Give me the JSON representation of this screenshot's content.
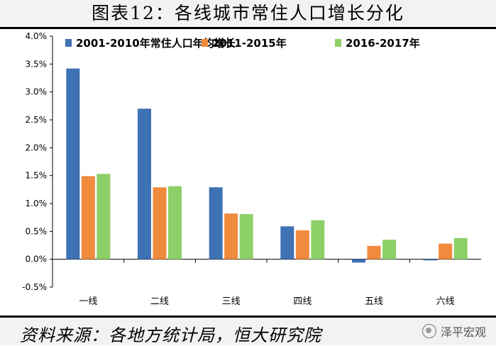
{
  "header": {
    "title": "图表12：各线城市常住人口增长分化"
  },
  "footer": {
    "source": "资料来源：各地方统计局，恒大研究院",
    "watermark": "泽平宏观"
  },
  "colors": {
    "series1": "#3f71b5",
    "series2": "#f08a3c",
    "series3": "#8ed068"
  },
  "chart_data": {
    "type": "bar",
    "title": "图表12：各线城市常住人口增长分化",
    "categories": [
      "一线",
      "二线",
      "三线",
      "四线",
      "五线",
      "六线"
    ],
    "series": [
      {
        "name": "2001-2010年常住人口年均增长",
        "values": [
          3.42,
          2.7,
          1.29,
          0.59,
          -0.06,
          -0.02
        ]
      },
      {
        "name": "2011-2015年",
        "values": [
          1.49,
          1.29,
          0.82,
          0.52,
          0.24,
          0.28
        ]
      },
      {
        "name": "2016-2017年",
        "values": [
          1.53,
          1.31,
          0.81,
          0.7,
          0.35,
          0.38
        ]
      }
    ],
    "yticks": [
      "-0.5%",
      "0.0%",
      "0.5%",
      "1.0%",
      "1.5%",
      "2.0%",
      "2.5%",
      "3.0%",
      "3.5%",
      "4.0%"
    ],
    "ylim": [
      -0.5,
      4.0
    ],
    "ylabel": "",
    "xlabel": "",
    "legend": "top",
    "grid": false
  }
}
